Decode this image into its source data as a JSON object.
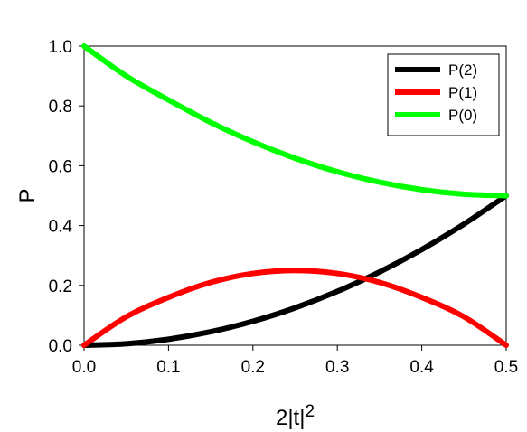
{
  "chart_data": {
    "type": "line",
    "xlabel": "2|t|",
    "xlabel_superscript": "2",
    "ylabel": "P",
    "xlim": [
      0,
      0.5
    ],
    "ylim": [
      0,
      1
    ],
    "xticks": [
      "0.0",
      "0.1",
      "0.2",
      "0.3",
      "0.4",
      "0.5"
    ],
    "xtick_values": [
      0,
      0.1,
      0.2,
      0.3,
      0.4,
      0.5
    ],
    "yticks": [
      "0.0",
      "0.2",
      "0.4",
      "0.6",
      "0.8",
      "1.0"
    ],
    "ytick_values": [
      0,
      0.2,
      0.4,
      0.6,
      0.8,
      1.0
    ],
    "grid": false,
    "legend_position": "top-right",
    "x": [
      0,
      0.05,
      0.1,
      0.15,
      0.2,
      0.25,
      0.3,
      0.35,
      0.4,
      0.45,
      0.5
    ],
    "series": [
      {
        "name": "P(2)",
        "color": "#000000",
        "values": [
          0,
          0.005,
          0.02,
          0.045,
          0.08,
          0.125,
          0.18,
          0.245,
          0.32,
          0.405,
          0.5
        ]
      },
      {
        "name": "P(1)",
        "color": "#ff0000",
        "values": [
          0,
          0.095,
          0.16,
          0.21,
          0.24,
          0.25,
          0.24,
          0.21,
          0.16,
          0.095,
          0
        ]
      },
      {
        "name": "P(0)",
        "color": "#00ff00",
        "values": [
          1.0,
          0.9,
          0.82,
          0.745,
          0.68,
          0.625,
          0.58,
          0.545,
          0.52,
          0.505,
          0.5
        ]
      }
    ]
  }
}
